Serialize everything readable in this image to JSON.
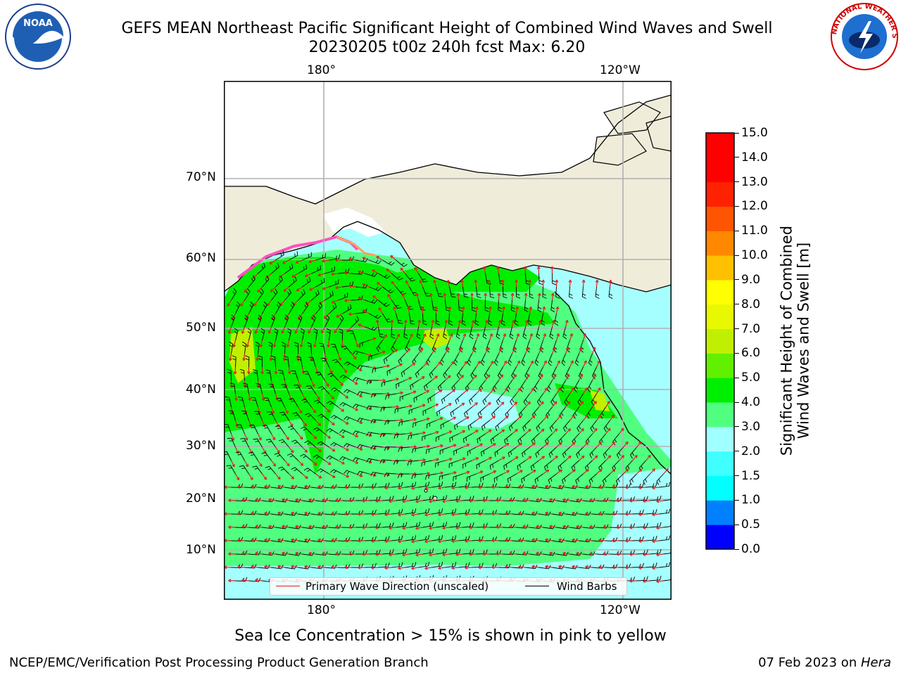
{
  "chart_data": {
    "type": "heatmap",
    "title_line1": "GEFS MEAN Northeast Pacific Significant Height of Combined Wind Waves and Swell",
    "title_line2": "20230205 t00z 240h fcst   Max: 6.20",
    "max_value": 6.2,
    "longitude_ticks": [
      "180°",
      "120°W"
    ],
    "latitude_ticks": [
      "70°N",
      "60°N",
      "50°N",
      "40°N",
      "30°N",
      "20°N",
      "10°N"
    ],
    "grid": true,
    "colorbar": {
      "label_line1": "Significant Height of Combined",
      "label_line2": "Wind Waves and Swell [m]",
      "range": [
        0,
        15
      ],
      "ticks": [
        "0.0",
        "0.5",
        "1.0",
        "1.5",
        "2.0",
        "3.0",
        "4.0",
        "5.0",
        "6.0",
        "7.0",
        "8.0",
        "9.0",
        "10.0",
        "11.0",
        "12.0",
        "13.0",
        "14.0",
        "15.0"
      ],
      "colors": [
        "#0000ff",
        "#0080ff",
        "#00ffff",
        "#40ffff",
        "#a0ffff",
        "#50ff80",
        "#00ee00",
        "#60f000",
        "#c0f000",
        "#e8f800",
        "#ffff00",
        "#ffc000",
        "#ff8800",
        "#ff5500",
        "#ff2200",
        "#ff0000",
        "#ff0000"
      ]
    },
    "legend": {
      "placement": "bottom-center",
      "entries": [
        {
          "name": "Primary Wave Direction (unscaled)",
          "color": "#e02020"
        },
        {
          "name": "Wind Barbs",
          "color": "#000000"
        }
      ]
    }
  },
  "footer": {
    "note": "Sea Ice Concentration > 15% is shown in pink to yellow",
    "left": "NCEP/EMC/Verification Post Processing Product Generation Branch",
    "date": "07 Feb 2023 on ",
    "machine": "Hera"
  },
  "logos": {
    "left": "NOAA",
    "right": "NATIONAL WEATHER SERVICE"
  }
}
